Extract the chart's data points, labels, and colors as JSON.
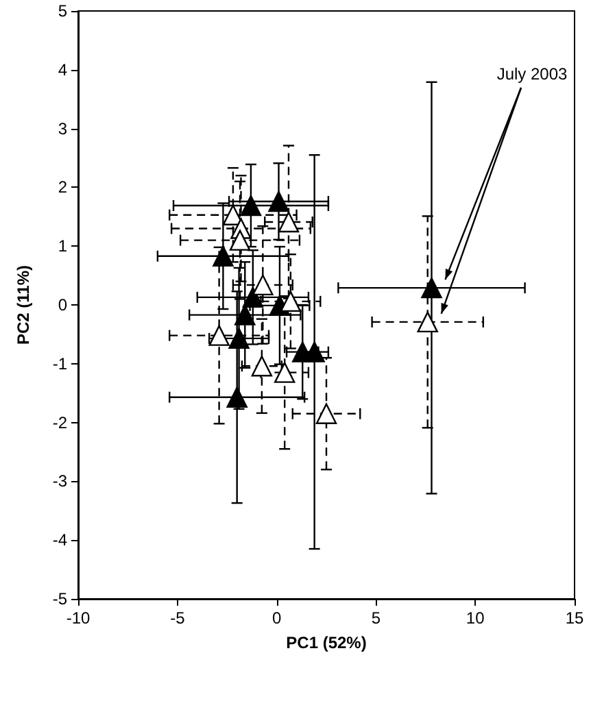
{
  "chart_data": {
    "type": "scatter",
    "xlabel": "PC1 (52%)",
    "ylabel": "PC2 (11%)",
    "annotations": [
      "July 2003"
    ],
    "xlim": [
      -10,
      15
    ],
    "xticks": [
      -10,
      -5,
      0,
      5,
      10,
      15
    ],
    "ylim": [
      -5,
      5
    ],
    "yticks": [
      -5,
      -4,
      -3,
      -2,
      -1,
      0,
      1,
      2,
      3,
      4,
      5
    ],
    "marker": "triangle",
    "series": [
      {
        "color": "#000000",
        "line_style": "solid",
        "x": [
          -1.3,
          0.1,
          -2.7,
          -1.2,
          0.15,
          -1.6,
          -1.9,
          1.3,
          1.9,
          -2.0,
          7.8
        ],
        "values": [
          1.69,
          1.76,
          0.83,
          0.13,
          -0.01,
          -0.17,
          -0.57,
          -0.8,
          -0.8,
          -1.57,
          0.29
        ],
        "xerrors": [
          3.9,
          2.5,
          3.3,
          2.8,
          1.5,
          2.8,
          1.5,
          0.8,
          0.7,
          3.4,
          4.7
        ],
        "errors": [
          0.7,
          0.65,
          0.9,
          0.8,
          1.0,
          0.9,
          1.2,
          0.8,
          3.35,
          1.8,
          3.5
        ]
      },
      {
        "color": "#ffffff",
        "line_style": "dashed",
        "x": [
          -2.2,
          0.6,
          -1.8,
          -1.85,
          -0.7,
          0.7,
          -2.9,
          -0.75,
          0.4,
          2.5,
          7.6
        ],
        "values": [
          1.53,
          1.41,
          1.3,
          1.1,
          0.34,
          0.06,
          -0.52,
          -1.04,
          -1.15,
          -1.85,
          -0.29
        ],
        "xerrors": [
          3.2,
          1.2,
          3.5,
          3.0,
          1.5,
          1.5,
          2.5,
          1.0,
          1.2,
          1.7,
          2.8
        ],
        "errors": [
          0.8,
          1.3,
          0.9,
          1.0,
          1.0,
          0.8,
          1.5,
          0.8,
          1.3,
          0.95,
          1.8
        ]
      }
    ]
  }
}
